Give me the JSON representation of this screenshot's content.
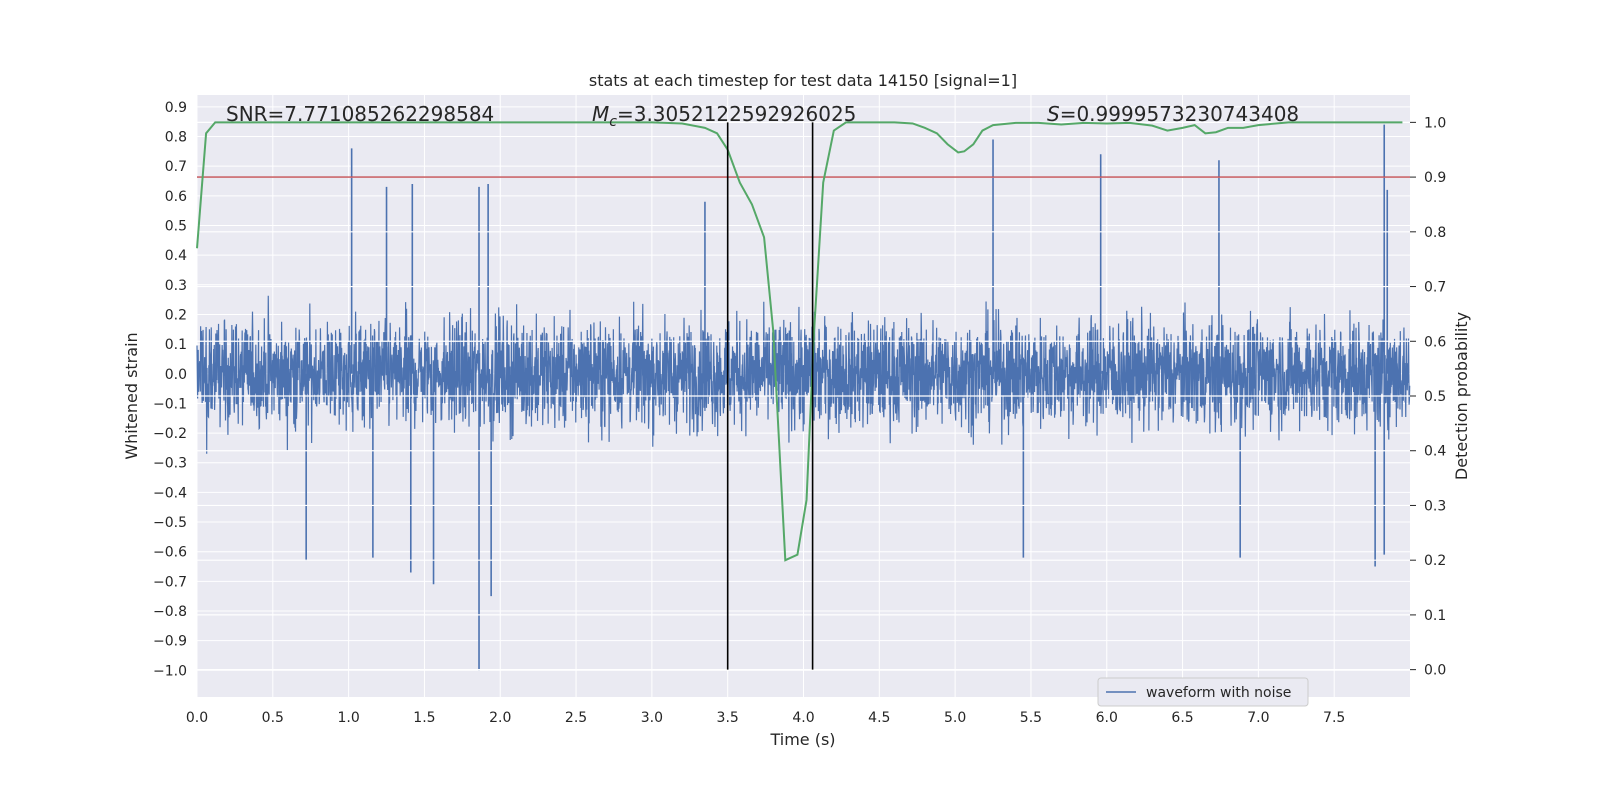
{
  "chart_data": {
    "type": "line",
    "title": "stats at each timestep for test data 14150 [signal=1]",
    "xlabel": "Time (s)",
    "ylabel": "Whitened strain",
    "y2label": "Detection probability",
    "xlim": [
      0.0,
      8.0
    ],
    "ylim": [
      -1.09,
      0.94
    ],
    "y2lim": [
      -0.05,
      1.05
    ],
    "xticks": [
      "0.0",
      "0.5",
      "1.0",
      "1.5",
      "2.0",
      "2.5",
      "3.0",
      "3.5",
      "4.0",
      "4.5",
      "5.0",
      "5.5",
      "6.0",
      "6.5",
      "7.0",
      "7.5"
    ],
    "yticks": [
      "0.9",
      "0.8",
      "0.7",
      "0.6",
      "0.5",
      "0.4",
      "0.3",
      "0.2",
      "0.1",
      "0.0",
      "−0.1",
      "−0.2",
      "−0.3",
      "−0.4",
      "−0.5",
      "−0.6",
      "−0.7",
      "−0.8",
      "−0.9",
      "−1.0"
    ],
    "y2ticks": [
      "1.0",
      "0.9",
      "0.8",
      "0.7",
      "0.6",
      "0.5",
      "0.4",
      "0.3",
      "0.2",
      "0.1",
      "0.0"
    ],
    "annotations": {
      "snr": "SNR=7.771085262298584",
      "mc_symbol": "M",
      "mc_sub": "c",
      "mc_value": "=3.3052122592926025",
      "s_symbol": "S",
      "s_value": "=0.9999573230743408"
    },
    "threshold": {
      "value": 0.9,
      "axis": "y2",
      "color": "#c44e52"
    },
    "vlines": [
      3.5,
      4.06
    ],
    "legend": {
      "label": "waveform with noise",
      "location": "bottom-right"
    },
    "series": [
      {
        "name": "waveform with noise",
        "axis": "y",
        "color": "#4c72b0",
        "note": "dense noisy whitened strain sampled over 0-8 s; typical amplitude about ±0.3",
        "spikes": [
          {
            "x": 1.02,
            "y": 0.76
          },
          {
            "x": 1.25,
            "y": 0.63
          },
          {
            "x": 1.42,
            "y": 0.64
          },
          {
            "x": 1.86,
            "y": 0.63
          },
          {
            "x": 1.92,
            "y": 0.64
          },
          {
            "x": 3.35,
            "y": 0.58
          },
          {
            "x": 5.25,
            "y": 0.79
          },
          {
            "x": 5.96,
            "y": 0.74
          },
          {
            "x": 6.74,
            "y": 0.72
          },
          {
            "x": 7.83,
            "y": 0.84
          },
          {
            "x": 7.85,
            "y": 0.62
          },
          {
            "x": 0.72,
            "y": -0.63
          },
          {
            "x": 1.16,
            "y": -0.62
          },
          {
            "x": 1.41,
            "y": -0.67
          },
          {
            "x": 1.56,
            "y": -0.71
          },
          {
            "x": 1.86,
            "y": -1.0
          },
          {
            "x": 1.94,
            "y": -0.75
          },
          {
            "x": 5.45,
            "y": -0.62
          },
          {
            "x": 6.88,
            "y": -0.62
          },
          {
            "x": 7.77,
            "y": -0.65
          },
          {
            "x": 7.83,
            "y": -0.61
          }
        ]
      },
      {
        "name": "detection probability",
        "axis": "y2",
        "color": "#55a868",
        "x": [
          0.0,
          0.06,
          0.12,
          0.3,
          0.6,
          1.0,
          1.5,
          2.0,
          2.5,
          3.0,
          3.2,
          3.35,
          3.43,
          3.5,
          3.58,
          3.66,
          3.74,
          3.8,
          3.88,
          3.96,
          4.02,
          4.07,
          4.13,
          4.2,
          4.28,
          4.4,
          4.6,
          4.72,
          4.8,
          4.88,
          4.95,
          5.02,
          5.06,
          5.12,
          5.18,
          5.25,
          5.4,
          5.55,
          5.7,
          5.85,
          6.0,
          6.15,
          6.3,
          6.4,
          6.5,
          6.58,
          6.65,
          6.72,
          6.8,
          6.9,
          7.0,
          7.2,
          7.5,
          7.8,
          7.95
        ],
        "y": [
          0.77,
          0.98,
          1.0,
          1.0,
          1.0,
          1.0,
          1.0,
          1.0,
          1.0,
          1.0,
          0.998,
          0.99,
          0.98,
          0.95,
          0.89,
          0.85,
          0.79,
          0.62,
          0.2,
          0.21,
          0.31,
          0.62,
          0.89,
          0.985,
          1.0,
          1.0,
          1.0,
          0.998,
          0.99,
          0.98,
          0.96,
          0.945,
          0.947,
          0.96,
          0.985,
          0.995,
          0.999,
          0.999,
          0.996,
          0.999,
          0.998,
          0.999,
          0.994,
          0.985,
          0.99,
          0.995,
          0.98,
          0.982,
          0.99,
          0.99,
          0.995,
          1.0,
          1.0,
          1.0,
          1.0
        ]
      }
    ]
  }
}
